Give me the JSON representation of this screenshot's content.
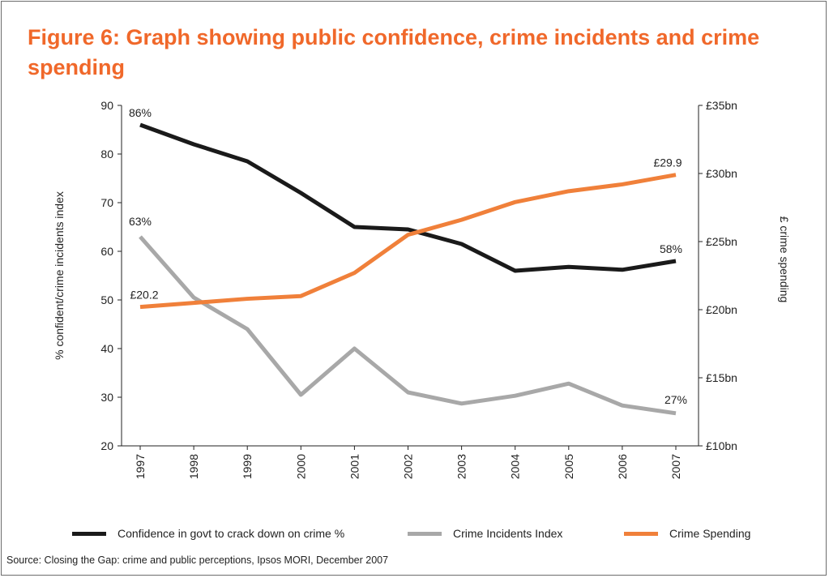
{
  "title": "Figure 6: Graph showing public confidence, crime incidents and crime spending",
  "source": "Source: Closing the Gap: crime and public perceptions, Ipsos MORI, December 2007",
  "colors": {
    "title": "#f0682a",
    "confidence": "#1a1a1a",
    "incidents": "#a8a8a8",
    "spending": "#f0803a"
  },
  "chart_data": {
    "type": "line",
    "categories": [
      "1997",
      "1998",
      "1999",
      "2000",
      "2001",
      "2002",
      "2003",
      "2004",
      "2005",
      "2006",
      "2007"
    ],
    "ylabel": "% confident/crime incidents index",
    "y2label": "£ crime spending",
    "ylim": [
      20,
      90
    ],
    "yticks": [
      "20",
      "30",
      "40",
      "50",
      "60",
      "70",
      "80",
      "90"
    ],
    "y2lim": [
      10,
      35
    ],
    "y2ticks": [
      "£10bn",
      "£15bn",
      "£20bn",
      "£25bn",
      "£30bn",
      "£35bn"
    ],
    "grid": false,
    "legend_position": "bottom",
    "series": [
      {
        "name": "Confidence in govt to crack down on crime %",
        "axis": "left",
        "color": "#1a1a1a",
        "values": [
          86,
          82,
          78.5,
          72,
          65,
          64.5,
          61.5,
          56,
          56.8,
          56.2,
          58
        ]
      },
      {
        "name": "Crime Incidents Index",
        "axis": "left",
        "color": "#a8a8a8",
        "values": [
          63,
          50.5,
          44,
          30.5,
          40,
          31,
          28.7,
          30.3,
          32.8,
          28.3,
          26.7
        ]
      },
      {
        "name": "Crime Spending",
        "axis": "right",
        "color": "#f0803a",
        "values": [
          20.2,
          20.5,
          20.8,
          21,
          22.7,
          25.5,
          26.6,
          27.9,
          28.7,
          29.2,
          29.9
        ]
      }
    ],
    "annotations": [
      {
        "text": "86%",
        "series": 0,
        "index": 0
      },
      {
        "text": "58%",
        "series": 0,
        "index": 10
      },
      {
        "text": "63%",
        "series": 1,
        "index": 0
      },
      {
        "text": "27%",
        "series": 1,
        "index": 10
      },
      {
        "text": "£20.2",
        "series": 2,
        "index": 0
      },
      {
        "text": "£29.9",
        "series": 2,
        "index": 10
      }
    ]
  }
}
